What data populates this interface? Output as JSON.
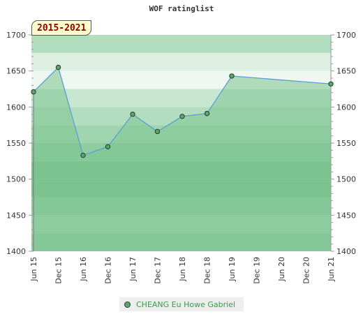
{
  "title": "WOF ratinglist",
  "badge": "2015-2021",
  "chart_data": {
    "type": "line",
    "title": "WOF ratinglist",
    "categories": [
      "Jun 15",
      "Dec 15",
      "Jun 16",
      "Dec 16",
      "Jun 17",
      "Dec 17",
      "Jun 18",
      "Dec 18",
      "Jun 19",
      "Dec 19",
      "Jun 20",
      "Dec 20",
      "Jun 21"
    ],
    "ylim": [
      1400,
      1700
    ],
    "yticks": [
      1400,
      1450,
      1500,
      1550,
      1600,
      1650,
      1700
    ],
    "y_axis_sides": [
      "left",
      "right"
    ],
    "grid": false,
    "legend_position": "bottom-center",
    "series": [
      {
        "name": "CHEANG Eu Howe Gabriel",
        "color": "#55aa66",
        "line_color": "#5b9fd4",
        "fill_color": "#7bc48f",
        "points": [
          {
            "x": "Jun 15",
            "y": 1621
          },
          {
            "x": "Dec 15",
            "y": 1655
          },
          {
            "x": "Jun 16",
            "y": 1533
          },
          {
            "x": "Dec 16",
            "y": 1545
          },
          {
            "x": "Jun 17",
            "y": 1590
          },
          {
            "x": "Dec 17",
            "y": 1566
          },
          {
            "x": "Jun 18",
            "y": 1587
          },
          {
            "x": "Dec 18",
            "y": 1591
          },
          {
            "x": "Jun 19",
            "y": 1643
          },
          {
            "x": "Jun 21",
            "y": 1632
          }
        ]
      }
    ],
    "band_colors": [
      "#7bc48f",
      "#8fcc9f",
      "#9fd4ad",
      "#b3ddbf",
      "#c8e7d0",
      "#dcefe1",
      "#eef7f0"
    ]
  }
}
